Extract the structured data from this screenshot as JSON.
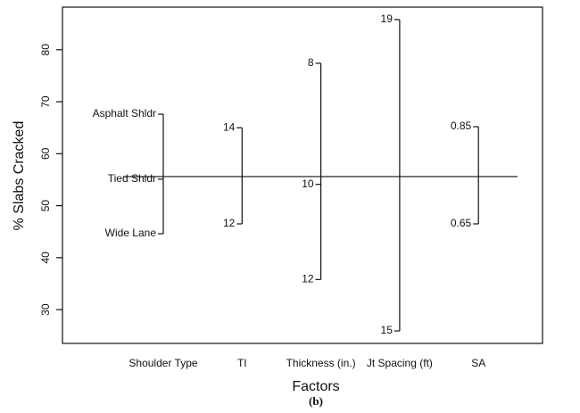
{
  "chart_data": {
    "type": "effects",
    "x_label": "Factors",
    "y_label": "% Slabs Cracked",
    "caption": "(b)",
    "ylim": [
      23.5,
      88.2
    ],
    "yticks": [
      30,
      40,
      50,
      60,
      70,
      80
    ],
    "reference_line": 55.6,
    "factors": [
      {
        "name": "Shoulder Type",
        "levels": [
          "Asphalt Shldr",
          "Tied Shldr",
          "Wide Lane"
        ],
        "values": [
          67.6,
          55.1,
          44.6
        ]
      },
      {
        "name": "TI",
        "levels": [
          "14",
          "12"
        ],
        "values": [
          65.0,
          46.5
        ]
      },
      {
        "name": "Thickness (in.)",
        "levels": [
          "8",
          "10",
          "12"
        ],
        "values": [
          77.4,
          54.1,
          35.8
        ]
      },
      {
        "name": "Jt Spacing (ft)",
        "levels": [
          "19",
          "15"
        ],
        "values": [
          85.8,
          25.9
        ]
      },
      {
        "name": "SA",
        "levels": [
          "0.85",
          "0.65"
        ],
        "values": [
          65.2,
          46.5
        ]
      }
    ]
  }
}
